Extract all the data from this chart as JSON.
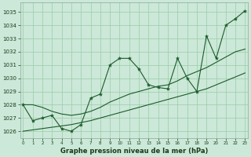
{
  "title": "Graphe pression niveau de la mer (hPa)",
  "bg_color": "#cce8d8",
  "grid_color": "#99ccaa",
  "line_color": "#1a5c2a",
  "x_values": [
    0,
    1,
    2,
    3,
    4,
    5,
    6,
    7,
    8,
    9,
    10,
    11,
    12,
    13,
    14,
    15,
    16,
    17,
    18,
    19,
    20,
    21,
    22,
    23
  ],
  "y_main": [
    1028.0,
    1026.8,
    1027.0,
    1027.2,
    1026.2,
    1026.0,
    1026.5,
    1028.5,
    1028.8,
    1031.0,
    1031.5,
    1031.5,
    1030.7,
    1029.5,
    1029.3,
    1029.2,
    1031.5,
    1030.0,
    1029.0,
    1033.2,
    1031.5,
    1034.0,
    1034.5,
    1035.1
  ],
  "y_trend_low": [
    1026.0,
    1026.1,
    1026.2,
    1026.3,
    1026.4,
    1026.5,
    1026.65,
    1026.8,
    1027.0,
    1027.2,
    1027.4,
    1027.6,
    1027.8,
    1028.0,
    1028.2,
    1028.4,
    1028.6,
    1028.8,
    1029.0,
    1029.2,
    1029.5,
    1029.8,
    1030.1,
    1030.4
  ],
  "y_trend_high": [
    1028.0,
    1028.0,
    1027.8,
    1027.5,
    1027.3,
    1027.2,
    1027.3,
    1027.5,
    1027.8,
    1028.2,
    1028.5,
    1028.8,
    1029.0,
    1029.2,
    1029.4,
    1029.5,
    1029.8,
    1030.2,
    1030.5,
    1030.8,
    1031.2,
    1031.6,
    1032.0,
    1032.2
  ],
  "ylim": [
    1025.5,
    1035.7
  ],
  "xlim": [
    -0.3,
    23.3
  ],
  "yticks": [
    1026,
    1027,
    1028,
    1029,
    1030,
    1031,
    1032,
    1033,
    1034,
    1035
  ],
  "xticks": [
    0,
    1,
    2,
    3,
    4,
    5,
    6,
    7,
    8,
    9,
    10,
    11,
    12,
    13,
    14,
    15,
    16,
    17,
    18,
    19,
    20,
    21,
    22,
    23
  ]
}
